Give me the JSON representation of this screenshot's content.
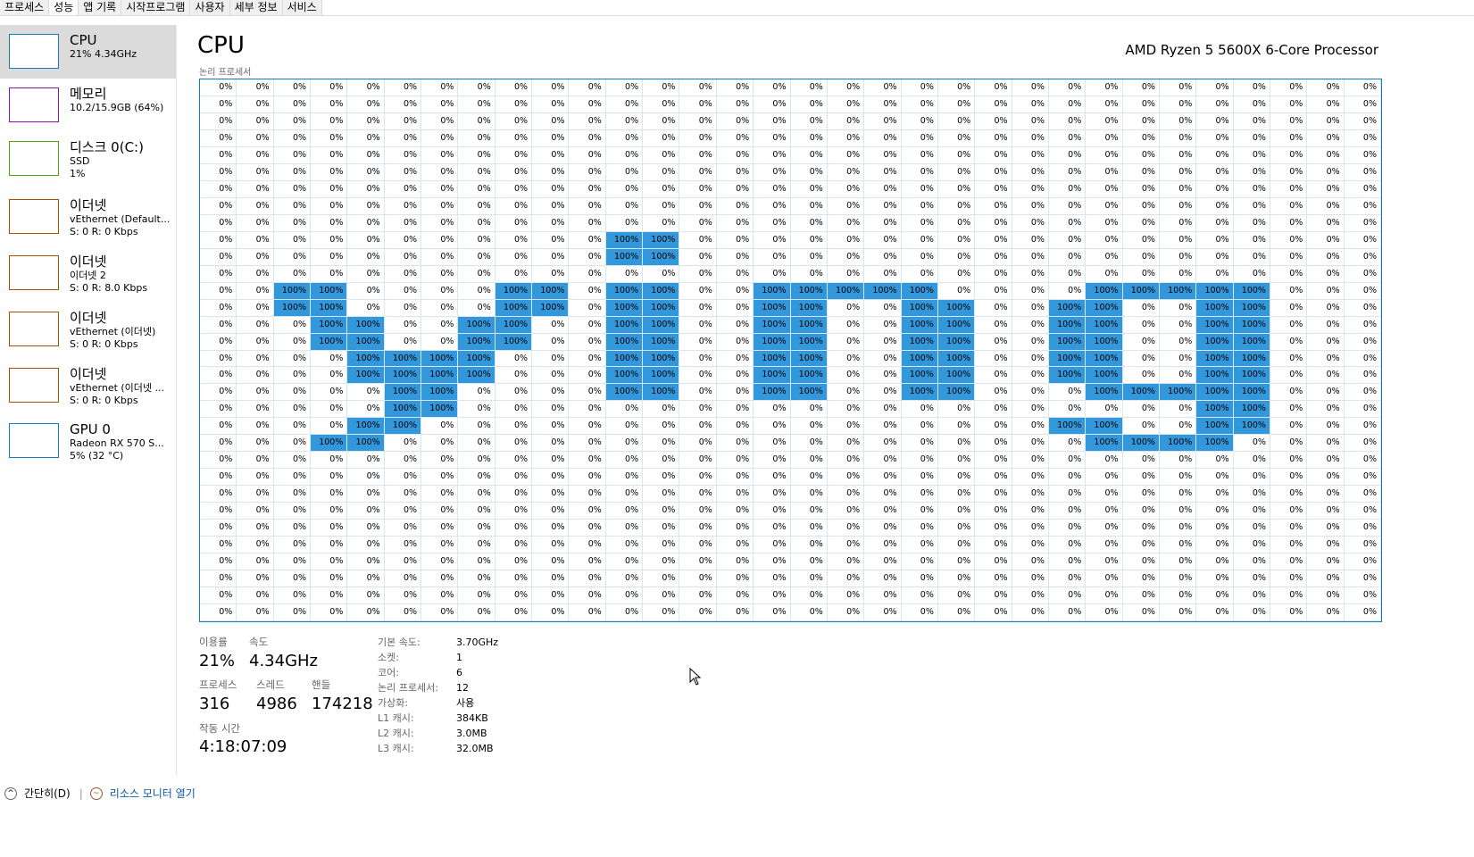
{
  "tabs": [
    "프로세스",
    "성능",
    "앱 기록",
    "시작프로그램",
    "사용자",
    "세부 정보",
    "서비스"
  ],
  "active_tab": 1,
  "sidebar": [
    {
      "title": "CPU",
      "line1": "21% 4.34GHz",
      "line2": "",
      "color": "#117dbb"
    },
    {
      "title": "메모리",
      "line1": "10.2/15.9GB (64%)",
      "line2": "",
      "color": "#8b12ae"
    },
    {
      "title": "디스크 0(C:)",
      "line1": "SSD",
      "line2": "1%",
      "color": "#4da60c"
    },
    {
      "title": "이더넷",
      "line1": "vEthernet (Default...",
      "line2": "S: 0 R: 0 Kbps",
      "color": "#a74f01"
    },
    {
      "title": "이더넷",
      "line1": "이더넷 2",
      "line2": "S: 0 R: 8.0 Kbps",
      "color": "#a74f01"
    },
    {
      "title": "이더넷",
      "line1": "vEthernet (이더넷)",
      "line2": "S: 0 R: 0 Kbps",
      "color": "#a74f01"
    },
    {
      "title": "이더넷",
      "line1": "vEthernet (이더넷 ...",
      "line2": "S: 0 R: 0 Kbps",
      "color": "#a74f01"
    },
    {
      "title": "GPU 0",
      "line1": "Radeon RX 570 S...",
      "line2": "5% (32 °C)",
      "color": "#117dbb"
    }
  ],
  "header": {
    "title": "CPU",
    "processor": "AMD Ryzen 5 5600X 6-Core Processor",
    "sublabel": "논리 프로세서"
  },
  "grid": {
    "cols": 32,
    "rows": 32,
    "zero_text": "0%",
    "hi_text": "100%",
    "highlight": [
      [
        9,
        [
          11,
          12
        ]
      ],
      [
        10,
        [
          11,
          12
        ]
      ],
      [
        12,
        [
          2,
          3,
          8,
          9,
          11,
          12,
          15,
          16,
          17,
          18,
          19,
          24,
          25,
          26,
          27,
          28
        ]
      ],
      [
        13,
        [
          2,
          3,
          8,
          9,
          11,
          12,
          15,
          16,
          19,
          20,
          23,
          24,
          27,
          28
        ]
      ],
      [
        14,
        [
          3,
          4,
          7,
          8,
          11,
          12,
          15,
          16,
          19,
          20,
          23,
          24,
          27,
          28
        ]
      ],
      [
        15,
        [
          3,
          4,
          7,
          8,
          11,
          12,
          15,
          16,
          19,
          20,
          23,
          24,
          27,
          28
        ]
      ],
      [
        16,
        [
          4,
          5,
          6,
          7,
          11,
          12,
          15,
          16,
          19,
          20,
          23,
          24,
          27,
          28
        ]
      ],
      [
        17,
        [
          4,
          5,
          6,
          7,
          11,
          12,
          15,
          16,
          19,
          20,
          23,
          24,
          27,
          28
        ]
      ],
      [
        18,
        [
          5,
          6,
          11,
          12,
          15,
          16,
          19,
          20,
          24,
          25,
          26,
          27,
          28
        ]
      ],
      [
        19,
        [
          5,
          6,
          27,
          28
        ]
      ],
      [
        20,
        [
          4,
          5,
          23,
          24,
          27,
          28
        ]
      ],
      [
        21,
        [
          3,
          4,
          24,
          25,
          26,
          27
        ]
      ]
    ]
  },
  "stats": {
    "usage_label": "이용률",
    "usage": "21%",
    "speed_label": "속도",
    "speed": "4.34GHz",
    "proc_label": "프로세스",
    "proc": "316",
    "thread_label": "스레드",
    "thread": "4986",
    "handle_label": "핸들",
    "handle": "174218",
    "uptime_label": "작동 시간",
    "uptime": "4:18:07:09"
  },
  "spec": [
    {
      "k": "기본 속도:",
      "v": "3.70GHz"
    },
    {
      "k": "소켓:",
      "v": "1"
    },
    {
      "k": "코어:",
      "v": "6"
    },
    {
      "k": "논리 프로세서:",
      "v": "12"
    },
    {
      "k": "가상화:",
      "v": "사용"
    },
    {
      "k": "L1 캐시:",
      "v": "384KB"
    },
    {
      "k": "L2 캐시:",
      "v": "3.0MB"
    },
    {
      "k": "L3 캐시:",
      "v": "32.0MB"
    }
  ],
  "footer": {
    "collapse": "간단히(D)",
    "monitor": "리소스 모니터 열기"
  }
}
